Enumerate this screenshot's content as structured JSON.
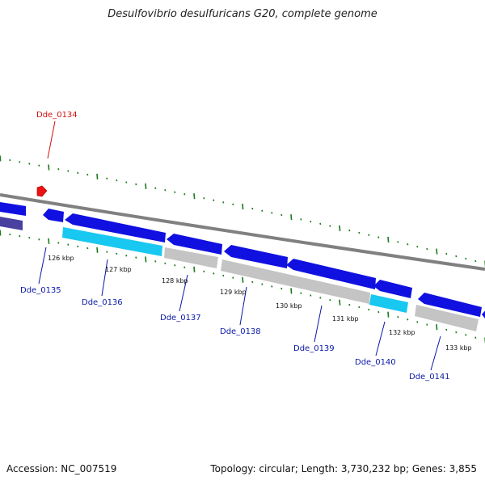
{
  "title": "Desulfovibrio desulfuricans G20, complete genome",
  "footer": {
    "accession": "Accession: NC_007519",
    "summary": "Topology: circular; Length: 3,730,232 bp; Genes: 3,855"
  },
  "colors": {
    "gene_blue": "#1010e0",
    "gene_cyan": "#18c8f0",
    "gene_gray": "#c4c4c4",
    "gene_purple": "#4a40a0",
    "highlight_red": "#ee1111",
    "tick_green": "#1a7a1a",
    "backbone": "#808080",
    "label_blue": "#0a18a8",
    "label_red": "#d11111"
  },
  "genes": [
    {
      "name": "Dde_0134",
      "highlight": true
    },
    {
      "name": "Dde_0135"
    },
    {
      "name": "Dde_0136"
    },
    {
      "name": "Dde_0137"
    },
    {
      "name": "Dde_0138"
    },
    {
      "name": "Dde_0139"
    },
    {
      "name": "Dde_0140"
    },
    {
      "name": "Dde_0141"
    }
  ],
  "kbp_ticks": [
    "126 kbp",
    "127 kbp",
    "128 kbp",
    "129 kbp",
    "130 kbp",
    "131 kbp",
    "132 kbp",
    "133 kbp"
  ]
}
